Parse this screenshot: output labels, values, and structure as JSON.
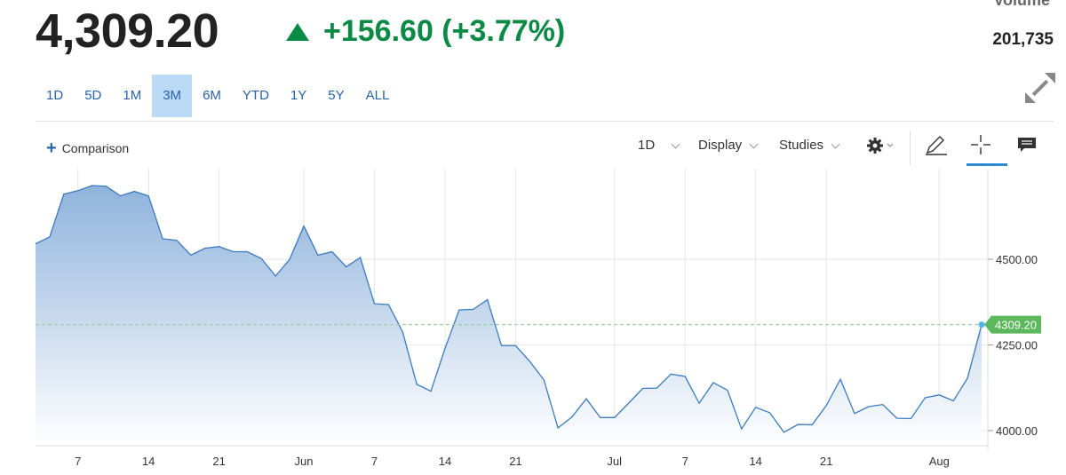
{
  "header": {
    "price": "4,309.20",
    "change": "+156.60 (+3.77%)",
    "volume_label": "Volume",
    "volume_value": "201,735"
  },
  "range_tabs": [
    "1D",
    "5D",
    "1M",
    "3M",
    "6M",
    "YTD",
    "1Y",
    "5Y",
    "ALL"
  ],
  "active_range": "3M",
  "toolbar": {
    "comparison_label": "Comparison",
    "interval_label": "1D",
    "display_label": "Display",
    "studies_label": "Studies"
  },
  "colors": {
    "line": "#3a7bbf",
    "up": "#0b8a46",
    "accent": "#2a8ad6",
    "area_top": "#8fb3dc",
    "area_bottom": "#ffffff",
    "price_marker": "#5cb85c"
  },
  "chart_data": {
    "type": "area",
    "last_price": 4309.2,
    "last_price_label": "4309.20",
    "y_ticks": [
      4000,
      4250,
      4500
    ],
    "y_tick_labels": [
      "4000.00",
      "4250.00",
      "4500.00"
    ],
    "x_tick_labels": [
      "7",
      "14",
      "21",
      "Jun",
      "7",
      "14",
      "21",
      "Jul",
      "7",
      "14",
      "21",
      "Aug"
    ],
    "x_tick_index": [
      3,
      8,
      13,
      19,
      24,
      29,
      34,
      41,
      46,
      51,
      56,
      64
    ],
    "values": [
      4545,
      4565,
      4690,
      4700,
      4715,
      4713,
      4685,
      4698,
      4685,
      4560,
      4555,
      4512,
      4532,
      4537,
      4522,
      4522,
      4502,
      4451,
      4500,
      4597,
      4512,
      4522,
      4478,
      4505,
      4370,
      4368,
      4288,
      4135,
      4115,
      4240,
      4352,
      4354,
      4382,
      4248,
      4248,
      4202,
      4148,
      4008,
      4040,
      4093,
      4038,
      4038,
      4080,
      4123,
      4124,
      4165,
      4158,
      4080,
      4140,
      4118,
      4005,
      4068,
      4052,
      3995,
      4018,
      4017,
      4073,
      4150,
      4050,
      4070,
      4076,
      4036,
      4035,
      4096,
      4104,
      4087,
      4153,
      4309
    ]
  }
}
